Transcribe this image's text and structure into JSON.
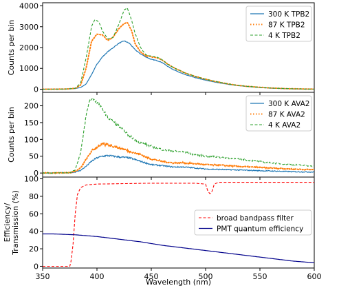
{
  "chart_data": [
    {
      "type": "line",
      "panel": "top",
      "xlabel": "",
      "ylabel": "Counts per bin",
      "xlim": [
        350,
        600
      ],
      "ylim": [
        -150,
        4150
      ],
      "yticks": [
        "0",
        "1000",
        "2000",
        "3000",
        "4000"
      ],
      "ytick_values": [
        0,
        1000,
        2000,
        3000,
        4000
      ],
      "legend_position": "top-right",
      "series": [
        {
          "name": "300 K TPB2",
          "color": "#1f77b4",
          "style": "solid",
          "x": [
            350,
            370,
            380,
            385,
            390,
            395,
            400,
            405,
            410,
            415,
            420,
            425,
            430,
            435,
            440,
            445,
            450,
            455,
            460,
            465,
            470,
            480,
            490,
            500,
            510,
            520,
            530,
            540,
            550,
            560,
            570,
            580,
            590,
            600
          ],
          "y": [
            0,
            5,
            30,
            80,
            250,
            700,
            1200,
            1550,
            1800,
            2000,
            2200,
            2320,
            2200,
            1900,
            1700,
            1550,
            1430,
            1380,
            1280,
            1100,
            950,
            720,
            560,
            430,
            330,
            240,
            170,
            120,
            80,
            50,
            30,
            15,
            8,
            0
          ]
        },
        {
          "name": "87 K TPB2",
          "color": "#ff7f0e",
          "style": "dotted",
          "x": [
            350,
            370,
            380,
            385,
            390,
            395,
            400,
            405,
            410,
            415,
            420,
            425,
            428,
            432,
            435,
            440,
            445,
            450,
            455,
            460,
            465,
            470,
            480,
            490,
            500,
            510,
            520,
            530,
            540,
            550,
            560,
            570,
            580,
            590,
            600
          ],
          "y": [
            0,
            5,
            40,
            200,
            1000,
            2300,
            2650,
            2600,
            2350,
            2500,
            2900,
            3150,
            3200,
            2800,
            2200,
            1800,
            1600,
            1560,
            1520,
            1400,
            1200,
            1050,
            800,
            620,
            480,
            360,
            260,
            180,
            130,
            90,
            60,
            35,
            20,
            10,
            0
          ]
        },
        {
          "name": "4 K TPB2",
          "color": "#2ca02c",
          "style": "dashed",
          "x": [
            350,
            370,
            380,
            385,
            390,
            395,
            398,
            402,
            405,
            410,
            415,
            420,
            425,
            428,
            432,
            435,
            440,
            445,
            450,
            455,
            460,
            465,
            470,
            480,
            490,
            500,
            510,
            520,
            530,
            540,
            550,
            560,
            570,
            580,
            590,
            600
          ],
          "y": [
            0,
            5,
            40,
            300,
            1500,
            3000,
            3350,
            3200,
            2800,
            2400,
            2500,
            3100,
            3800,
            3900,
            3300,
            2700,
            2000,
            1650,
            1580,
            1540,
            1420,
            1200,
            1050,
            800,
            620,
            480,
            360,
            260,
            180,
            130,
            90,
            60,
            35,
            20,
            10,
            0
          ]
        }
      ]
    },
    {
      "type": "line",
      "panel": "middle",
      "xlabel": "",
      "ylabel": "Counts per bin",
      "xlim": [
        350,
        600
      ],
      "ylim": [
        -12,
        240
      ],
      "yticks": [
        "0",
        "50",
        "100",
        "150",
        "200"
      ],
      "ytick_values": [
        0,
        50,
        100,
        150,
        200
      ],
      "legend_position": "top-right",
      "series": [
        {
          "name": "300 K AVA2",
          "color": "#1f77b4",
          "style": "solid",
          "x": [
            350,
            375,
            380,
            385,
            390,
            395,
            400,
            405,
            410,
            420,
            430,
            440,
            450,
            460,
            470,
            480,
            490,
            500,
            520,
            540,
            560,
            580,
            600
          ],
          "y": [
            0,
            1,
            3,
            8,
            20,
            35,
            45,
            50,
            52,
            48,
            45,
            35,
            25,
            22,
            18,
            18,
            15,
            12,
            10,
            8,
            6,
            4,
            3
          ]
        },
        {
          "name": "87 K AVA2",
          "color": "#ff7f0e",
          "style": "dotted",
          "x": [
            350,
            375,
            380,
            385,
            390,
            395,
            400,
            405,
            410,
            420,
            430,
            440,
            450,
            460,
            470,
            480,
            490,
            500,
            520,
            540,
            560,
            580,
            600
          ],
          "y": [
            0,
            1,
            5,
            15,
            40,
            65,
            78,
            85,
            85,
            75,
            65,
            55,
            42,
            35,
            30,
            30,
            28,
            25,
            22,
            18,
            15,
            12,
            10
          ]
        },
        {
          "name": "4 K AVA2",
          "color": "#2ca02c",
          "style": "dashed",
          "x": [
            350,
            375,
            380,
            385,
            390,
            393,
            397,
            400,
            405,
            410,
            420,
            430,
            440,
            450,
            460,
            470,
            480,
            490,
            500,
            510,
            520,
            540,
            560,
            580,
            600
          ],
          "y": [
            0,
            1,
            10,
            60,
            170,
            215,
            220,
            210,
            190,
            165,
            140,
            110,
            90,
            80,
            70,
            65,
            62,
            55,
            50,
            48,
            45,
            38,
            30,
            25,
            20
          ]
        }
      ]
    },
    {
      "type": "line",
      "panel": "bottom",
      "xlabel": "Wavelength (nm)",
      "ylabel": "Efficiency/ Transmission (%)",
      "ylabel_lines": [
        "Efficiency/",
        "Transmission (%)"
      ],
      "xlim": [
        350,
        600
      ],
      "ylim": [
        -2,
        102
      ],
      "xticks": [
        "350",
        "400",
        "450",
        "500",
        "550",
        "600"
      ],
      "xtick_values": [
        350,
        400,
        450,
        500,
        550,
        600
      ],
      "yticks": [
        "0",
        "20",
        "40",
        "60",
        "80",
        "100"
      ],
      "ytick_values": [
        0,
        20,
        40,
        60,
        80,
        100
      ],
      "legend_position": "center-right",
      "series": [
        {
          "name": "broad bandpass filter",
          "color": "#ff0000",
          "style": "dashed",
          "x": [
            350,
            375,
            376,
            378,
            380,
            382,
            385,
            390,
            400,
            450,
            490,
            500,
            502,
            504,
            506,
            508,
            512,
            600
          ],
          "y": [
            0,
            0,
            5,
            25,
            60,
            82,
            90,
            93,
            94,
            95,
            95,
            94,
            86,
            83,
            86,
            94,
            96,
            96
          ]
        },
        {
          "name": "PMT quantum efficiency",
          "color": "#00008b",
          "style": "solid",
          "x": [
            350,
            360,
            380,
            400,
            420,
            440,
            460,
            480,
            500,
            520,
            540,
            560,
            580,
            600
          ],
          "y": [
            37,
            37,
            36,
            34,
            31,
            28,
            24,
            21,
            18,
            15,
            12,
            9,
            6,
            4
          ]
        }
      ]
    }
  ]
}
